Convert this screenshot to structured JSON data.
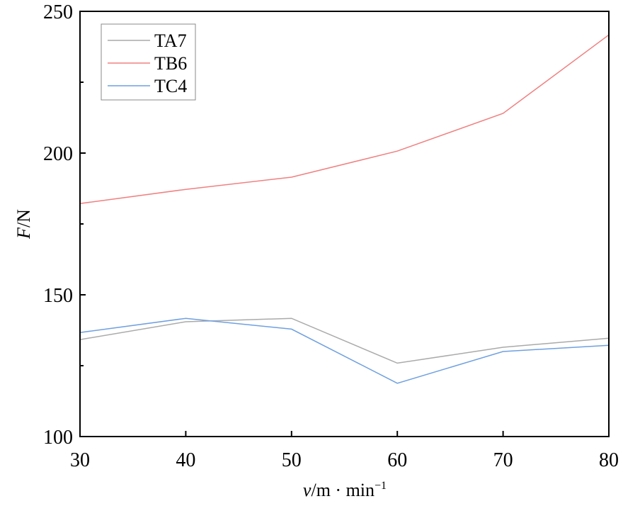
{
  "chart_data": {
    "type": "line",
    "title": "",
    "xlabel_italic": "v",
    "xlabel_rest": "/m · min",
    "xlabel_sup": "−1",
    "ylabel_italic": "F",
    "ylabel_rest": "/N",
    "x": [
      30,
      40,
      50,
      60,
      70,
      80
    ],
    "xlim": [
      30,
      80
    ],
    "ylim": [
      100,
      250
    ],
    "xticks": [
      30,
      40,
      50,
      60,
      70,
      80
    ],
    "yticks": [
      100,
      150,
      200,
      250
    ],
    "grid": false,
    "legend_position": "top-left",
    "series": [
      {
        "name": "TA7",
        "color": "#aaaaaa",
        "values": [
          134.2,
          140.5,
          141.7,
          125.9,
          131.5,
          134.7
        ]
      },
      {
        "name": "TB6",
        "color": "#f08080",
        "values": [
          182.2,
          187.2,
          191.5,
          200.7,
          214.0,
          241.7
        ]
      },
      {
        "name": "TC4",
        "color": "#6fa0e0",
        "values": [
          136.7,
          141.7,
          137.9,
          118.8,
          130.0,
          132.2
        ]
      }
    ]
  }
}
